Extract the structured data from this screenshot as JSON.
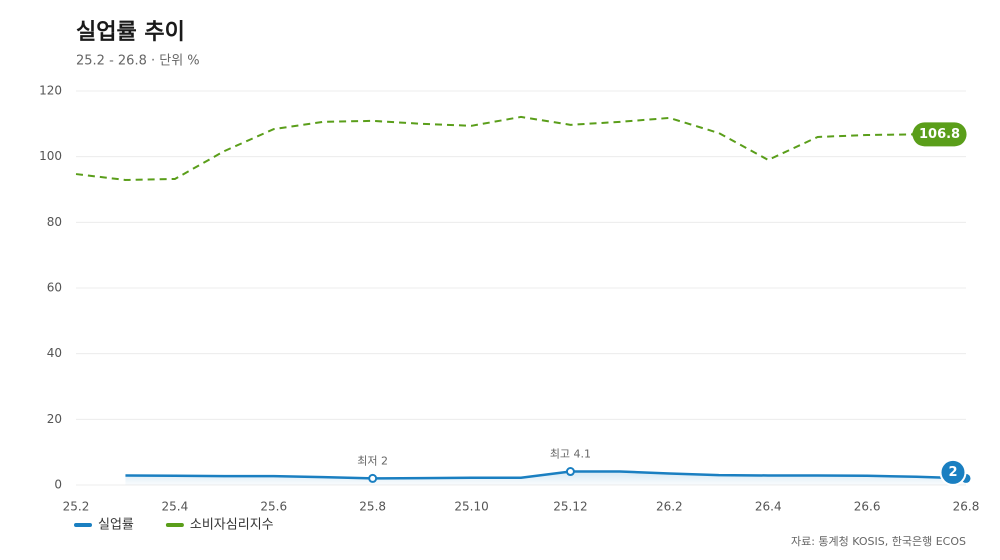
{
  "chart_data": {
    "type": "line",
    "title": "실업률 추이",
    "subtitle": "25.2 - 26.8 · 단위 %",
    "source": "자료: 통계청 KOSIS, 한국은행 ECOS",
    "categories": [
      "25.2",
      null,
      "25.4",
      null,
      "25.6",
      null,
      "25.8",
      null,
      "25.10",
      null,
      "25.12",
      null,
      "26.2",
      null,
      "26.4",
      null,
      "26.6",
      null,
      "26.8"
    ],
    "series": [
      {
        "name": "실업률",
        "color": "#1a7fc1",
        "dashed": false,
        "area": true,
        "values": [
          null,
          2.9,
          2.8,
          2.7,
          2.7,
          2.4,
          2.0,
          2.1,
          2.2,
          2.2,
          4.1,
          4.1,
          3.5,
          3.0,
          2.9,
          2.9,
          2.8,
          2.5,
          2.0
        ]
      },
      {
        "name": "소비자심리지수",
        "color": "#5a9e1a",
        "dashed": true,
        "area": false,
        "values": [
          94.7,
          92.9,
          93.2,
          101.7,
          108.4,
          110.6,
          110.9,
          110.0,
          109.4,
          112.1,
          109.7,
          110.6,
          111.8,
          107.2,
          99.0,
          106.0,
          106.6,
          106.8,
          null
        ]
      }
    ],
    "annotations": [
      {
        "text": "최저 2",
        "x": "25.8",
        "series": 0
      },
      {
        "text": "최고 4.1",
        "x": "25.12",
        "series": 0
      }
    ],
    "ylim": [
      0,
      120
    ],
    "yticks": [
      0,
      20,
      40,
      60,
      80,
      100,
      120
    ],
    "grid": true,
    "legend": "bottom-left"
  }
}
